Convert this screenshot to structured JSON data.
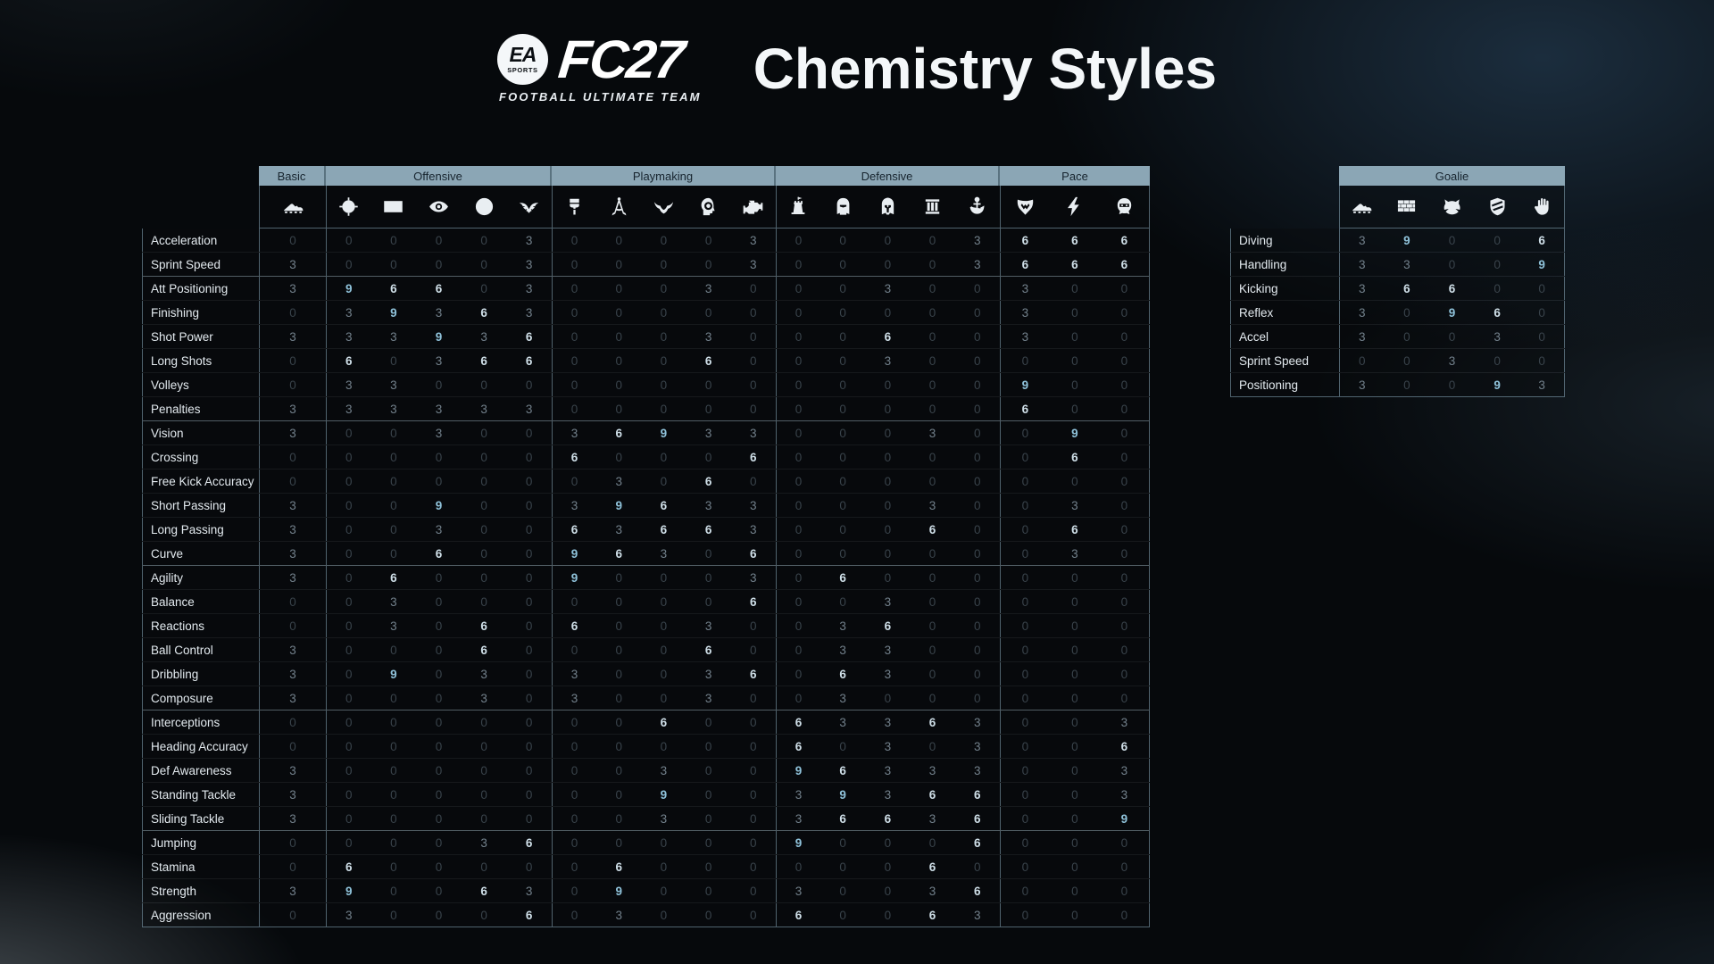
{
  "header": {
    "badge_top": "EA",
    "badge_bottom": "SPORTS",
    "game_title": "FC27",
    "subtitle": "FOOTBALL ULTIMATE TEAM",
    "page_title": "Chemistry Styles"
  },
  "colors": {
    "background": "#06090c",
    "header_band": "#8ba6b5",
    "header_band_text": "#17242e",
    "row_label_text": "#e3eaef",
    "value_0": "#39434b",
    "value_3": "#72808b",
    "value_6": "#cfdfe8",
    "value_9": "#8fc2da",
    "group_divider": "#8dadc0"
  },
  "chart_data": [
    {
      "type": "table",
      "name": "outfield-chemistry-styles",
      "column_groups": [
        {
          "label": "Basic",
          "icons": [
            "boot-icon"
          ]
        },
        {
          "label": "Offensive",
          "icons": [
            "crosshair-icon",
            "goal-check-icon",
            "eye-icon",
            "target-icon",
            "wings-icon"
          ]
        },
        {
          "label": "Playmaking",
          "icons": [
            "paintbrush-icon",
            "compass-icon",
            "bull-icon",
            "gear-head-icon",
            "engine-icon"
          ]
        },
        {
          "label": "Defensive",
          "icons": [
            "watchtower-icon",
            "knight-helmet-icon",
            "spartan-helmet-icon",
            "pillar-icon",
            "anchor-icon"
          ]
        },
        {
          "label": "Pace",
          "icons": [
            "viper-icon",
            "lightning-icon",
            "mask-icon"
          ]
        }
      ],
      "sections": [
        {
          "rows": [
            {
              "label": "Acceleration",
              "values": [
                0,
                0,
                0,
                0,
                0,
                3,
                0,
                0,
                0,
                0,
                3,
                0,
                0,
                0,
                0,
                3,
                6,
                6,
                6
              ]
            },
            {
              "label": "Sprint Speed",
              "values": [
                3,
                0,
                0,
                0,
                0,
                3,
                0,
                0,
                0,
                0,
                3,
                0,
                0,
                0,
                0,
                3,
                6,
                6,
                6
              ]
            }
          ]
        },
        {
          "rows": [
            {
              "label": "Att Positioning",
              "values": [
                3,
                9,
                6,
                6,
                0,
                3,
                0,
                0,
                0,
                3,
                0,
                0,
                0,
                3,
                0,
                0,
                3,
                0,
                0
              ]
            },
            {
              "label": "Finishing",
              "values": [
                0,
                3,
                9,
                3,
                6,
                3,
                0,
                0,
                0,
                0,
                0,
                0,
                0,
                0,
                0,
                0,
                3,
                0,
                0
              ]
            },
            {
              "label": "Shot Power",
              "values": [
                3,
                3,
                3,
                9,
                3,
                6,
                0,
                0,
                0,
                3,
                0,
                0,
                0,
                6,
                0,
                0,
                3,
                0,
                0
              ]
            },
            {
              "label": "Long Shots",
              "values": [
                0,
                6,
                0,
                3,
                6,
                6,
                0,
                0,
                0,
                6,
                0,
                0,
                0,
                3,
                0,
                0,
                0,
                0,
                0
              ]
            },
            {
              "label": "Volleys",
              "values": [
                0,
                3,
                3,
                0,
                0,
                0,
                0,
                0,
                0,
                0,
                0,
                0,
                0,
                0,
                0,
                0,
                9,
                0,
                0
              ]
            },
            {
              "label": "Penalties",
              "values": [
                3,
                3,
                3,
                3,
                3,
                3,
                0,
                0,
                0,
                0,
                0,
                0,
                0,
                0,
                0,
                0,
                6,
                0,
                0
              ]
            }
          ]
        },
        {
          "rows": [
            {
              "label": "Vision",
              "values": [
                3,
                0,
                0,
                3,
                0,
                0,
                3,
                6,
                9,
                3,
                3,
                0,
                0,
                0,
                3,
                0,
                0,
                9,
                0
              ]
            },
            {
              "label": "Crossing",
              "values": [
                0,
                0,
                0,
                0,
                0,
                0,
                6,
                0,
                0,
                0,
                6,
                0,
                0,
                0,
                0,
                0,
                0,
                6,
                0
              ]
            },
            {
              "label": "Free Kick Accuracy",
              "values": [
                0,
                0,
                0,
                0,
                0,
                0,
                0,
                3,
                0,
                6,
                0,
                0,
                0,
                0,
                0,
                0,
                0,
                0,
                0
              ]
            },
            {
              "label": "Short Passing",
              "values": [
                3,
                0,
                0,
                9,
                0,
                0,
                3,
                9,
                6,
                3,
                3,
                0,
                0,
                0,
                3,
                0,
                0,
                3,
                0
              ]
            },
            {
              "label": "Long Passing",
              "values": [
                3,
                0,
                0,
                3,
                0,
                0,
                6,
                3,
                6,
                6,
                3,
                0,
                0,
                0,
                6,
                0,
                0,
                6,
                0
              ]
            },
            {
              "label": "Curve",
              "values": [
                3,
                0,
                0,
                6,
                0,
                0,
                9,
                6,
                3,
                0,
                6,
                0,
                0,
                0,
                0,
                0,
                0,
                3,
                0
              ]
            }
          ]
        },
        {
          "rows": [
            {
              "label": "Agility",
              "values": [
                3,
                0,
                6,
                0,
                0,
                0,
                9,
                0,
                0,
                0,
                3,
                0,
                6,
                0,
                0,
                0,
                0,
                0,
                0
              ]
            },
            {
              "label": "Balance",
              "values": [
                0,
                0,
                3,
                0,
                0,
                0,
                0,
                0,
                0,
                0,
                6,
                0,
                0,
                3,
                0,
                0,
                0,
                0,
                0
              ]
            },
            {
              "label": "Reactions",
              "values": [
                0,
                0,
                3,
                0,
                6,
                0,
                6,
                0,
                0,
                3,
                0,
                0,
                3,
                6,
                0,
                0,
                0,
                0,
                0
              ]
            },
            {
              "label": "Ball Control",
              "values": [
                3,
                0,
                0,
                0,
                6,
                0,
                0,
                0,
                0,
                6,
                0,
                0,
                3,
                3,
                0,
                0,
                0,
                0,
                0
              ]
            },
            {
              "label": "Dribbling",
              "values": [
                3,
                0,
                9,
                0,
                3,
                0,
                3,
                0,
                0,
                3,
                6,
                0,
                6,
                3,
                0,
                0,
                0,
                0,
                0
              ]
            },
            {
              "label": "Composure",
              "values": [
                3,
                0,
                0,
                0,
                3,
                0,
                3,
                0,
                0,
                3,
                0,
                0,
                3,
                0,
                0,
                0,
                0,
                0,
                0
              ]
            }
          ]
        },
        {
          "rows": [
            {
              "label": "Interceptions",
              "values": [
                0,
                0,
                0,
                0,
                0,
                0,
                0,
                0,
                6,
                0,
                0,
                6,
                3,
                3,
                6,
                3,
                0,
                0,
                3
              ]
            },
            {
              "label": "Heading Accuracy",
              "values": [
                0,
                0,
                0,
                0,
                0,
                0,
                0,
                0,
                0,
                0,
                0,
                6,
                0,
                3,
                0,
                3,
                0,
                0,
                6
              ]
            },
            {
              "label": "Def Awareness",
              "values": [
                3,
                0,
                0,
                0,
                0,
                0,
                0,
                0,
                3,
                0,
                0,
                9,
                6,
                3,
                3,
                3,
                0,
                0,
                3
              ]
            },
            {
              "label": "Standing Tackle",
              "values": [
                3,
                0,
                0,
                0,
                0,
                0,
                0,
                0,
                9,
                0,
                0,
                3,
                9,
                3,
                6,
                6,
                0,
                0,
                3
              ]
            },
            {
              "label": "Sliding Tackle",
              "values": [
                3,
                0,
                0,
                0,
                0,
                0,
                0,
                0,
                3,
                0,
                0,
                3,
                6,
                6,
                3,
                6,
                0,
                0,
                9
              ]
            }
          ]
        },
        {
          "rows": [
            {
              "label": "Jumping",
              "values": [
                0,
                0,
                0,
                0,
                3,
                6,
                0,
                0,
                0,
                0,
                0,
                9,
                0,
                0,
                0,
                6,
                0,
                0,
                0
              ]
            },
            {
              "label": "Stamina",
              "values": [
                0,
                6,
                0,
                0,
                0,
                0,
                0,
                6,
                0,
                0,
                0,
                0,
                0,
                0,
                6,
                0,
                0,
                0,
                0
              ]
            },
            {
              "label": "Strength",
              "values": [
                3,
                9,
                0,
                0,
                6,
                3,
                0,
                9,
                0,
                0,
                0,
                3,
                0,
                0,
                3,
                6,
                0,
                0,
                0
              ]
            },
            {
              "label": "Aggression",
              "values": [
                0,
                3,
                0,
                0,
                0,
                6,
                0,
                3,
                0,
                0,
                0,
                6,
                0,
                0,
                6,
                3,
                0,
                0,
                0
              ]
            }
          ]
        }
      ]
    },
    {
      "type": "table",
      "name": "goalie-chemistry-styles",
      "column_groups": [
        {
          "label": "Goalie",
          "icons": [
            "boot-icon",
            "brick-wall-icon",
            "cat-icon",
            "shield-icon",
            "glove-icon"
          ]
        }
      ],
      "sections": [
        {
          "rows": [
            {
              "label": "Diving",
              "values": [
                3,
                9,
                0,
                0,
                6
              ]
            },
            {
              "label": "Handling",
              "values": [
                3,
                3,
                0,
                0,
                9
              ]
            },
            {
              "label": "Kicking",
              "values": [
                3,
                6,
                6,
                0,
                0
              ]
            },
            {
              "label": "Reflex",
              "values": [
                3,
                0,
                9,
                6,
                0
              ]
            },
            {
              "label": "Accel",
              "values": [
                3,
                0,
                0,
                3,
                0
              ]
            },
            {
              "label": "Sprint Speed",
              "values": [
                0,
                0,
                3,
                0,
                0
              ]
            },
            {
              "label": "Positioning",
              "values": [
                3,
                0,
                0,
                9,
                3
              ]
            }
          ]
        }
      ]
    }
  ]
}
